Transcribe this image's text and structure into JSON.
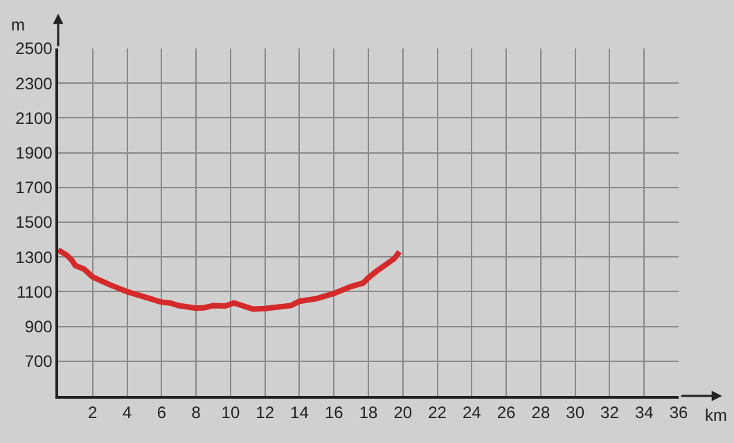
{
  "chart_data": {
    "type": "line",
    "xlabel": "km",
    "ylabel": "m",
    "x": [
      0,
      0.5,
      0.8,
      1,
      1.5,
      2,
      3,
      4,
      5,
      6,
      6.5,
      7,
      8,
      8.5,
      9,
      9.7,
      10.2,
      11.3,
      12,
      13.5,
      14,
      15,
      16,
      17,
      17.7,
      18,
      18.5,
      19,
      19.5,
      19.8
    ],
    "series": [
      {
        "color": "#d42a2a",
        "values": [
          1340,
          1310,
          1280,
          1250,
          1230,
          1185,
          1140,
          1100,
          1070,
          1040,
          1035,
          1020,
          1005,
          1008,
          1020,
          1018,
          1035,
          1000,
          1003,
          1020,
          1045,
          1060,
          1090,
          1130,
          1150,
          1180,
          1220,
          1255,
          1290,
          1330
        ]
      }
    ],
    "xlim": [
      0,
      36
    ],
    "xticks": [
      2,
      4,
      6,
      8,
      10,
      12,
      14,
      16,
      18,
      20,
      22,
      24,
      26,
      28,
      30,
      32,
      34,
      36
    ],
    "ylim": [
      500,
      2500
    ],
    "yticks": [
      700,
      900,
      1100,
      1300,
      1500,
      1700,
      1900,
      2100,
      2300,
      2500
    ],
    "grid": true,
    "marker": "none",
    "line_style": "solid"
  }
}
